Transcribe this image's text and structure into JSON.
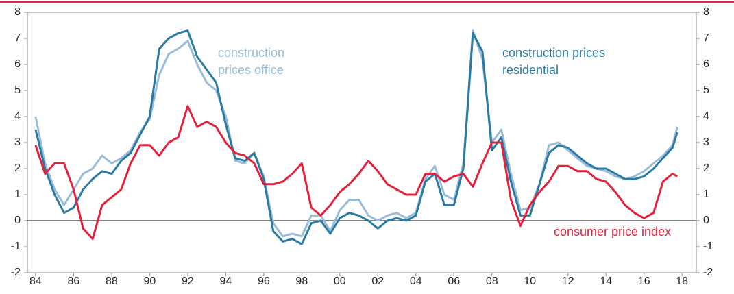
{
  "chart_data": {
    "type": "line",
    "x": [
      1984,
      1984.5,
      1985,
      1985.5,
      1986,
      1986.5,
      1987,
      1987.5,
      1988,
      1988.5,
      1989,
      1989.5,
      1990,
      1990.5,
      1991,
      1991.5,
      1992,
      1992.5,
      1993,
      1993.5,
      1994,
      1994.5,
      1995,
      1995.5,
      1996,
      1996.5,
      1997,
      1997.5,
      1998,
      1998.5,
      1999,
      1999.5,
      2000,
      2000.5,
      2001,
      2001.5,
      2002,
      2002.5,
      2003,
      2003.5,
      2004,
      2004.5,
      2005,
      2005.5,
      2006,
      2006.5,
      2007,
      2007.5,
      2008,
      2008.5,
      2009,
      2009.5,
      2010,
      2010.5,
      2011,
      2011.5,
      2012,
      2012.5,
      2013,
      2013.5,
      2014,
      2014.5,
      2015,
      2015.5,
      2016,
      2016.5,
      2017,
      2017.5,
      2017.75
    ],
    "series": [
      {
        "name": "construction prices office",
        "color": "#99bcd8",
        "values": [
          4.0,
          2.2,
          1.2,
          0.6,
          1.2,
          1.8,
          2.0,
          2.5,
          2.2,
          2.4,
          2.7,
          3.4,
          3.9,
          5.6,
          6.4,
          6.6,
          6.9,
          6.0,
          5.3,
          5.0,
          4.0,
          2.3,
          2.2,
          2.6,
          1.7,
          -0.1,
          -0.6,
          -0.5,
          -0.6,
          0.2,
          0.2,
          -0.4,
          0.4,
          0.8,
          0.8,
          0.2,
          0.0,
          0.2,
          0.3,
          0.1,
          0.3,
          1.6,
          2.1,
          1.0,
          0.8,
          2.2,
          7.3,
          6.2,
          3.0,
          3.5,
          1.8,
          0.4,
          0.5,
          1.4,
          2.9,
          3.0,
          2.7,
          2.4,
          2.1,
          2.0,
          1.9,
          1.7,
          1.6,
          1.7,
          1.9,
          2.2,
          2.5,
          2.9,
          3.6
        ]
      },
      {
        "name": "construction prices residential",
        "color": "#2a7aa3",
        "values": [
          3.5,
          2.0,
          1.0,
          0.3,
          0.5,
          1.2,
          1.6,
          1.9,
          1.8,
          2.3,
          2.6,
          3.3,
          4.0,
          6.6,
          7.0,
          7.2,
          7.3,
          6.3,
          5.8,
          5.3,
          3.7,
          2.4,
          2.3,
          2.6,
          1.6,
          -0.4,
          -0.8,
          -0.7,
          -0.9,
          -0.1,
          0.0,
          -0.5,
          0.1,
          0.3,
          0.2,
          0.0,
          -0.3,
          0.0,
          0.1,
          0.0,
          0.2,
          1.5,
          1.8,
          0.6,
          0.6,
          2.0,
          7.2,
          6.5,
          2.7,
          3.2,
          1.5,
          0.2,
          0.2,
          1.4,
          2.6,
          2.9,
          2.8,
          2.5,
          2.2,
          2.0,
          2.0,
          1.8,
          1.6,
          1.6,
          1.7,
          2.0,
          2.4,
          2.8,
          3.4
        ]
      },
      {
        "name": "consumer price index",
        "color": "#e5203a",
        "values": [
          2.9,
          1.8,
          2.2,
          2.2,
          1.2,
          -0.3,
          -0.7,
          0.6,
          0.9,
          1.2,
          2.2,
          2.9,
          2.9,
          2.5,
          3.0,
          3.2,
          4.4,
          3.6,
          3.8,
          3.6,
          3.0,
          2.6,
          2.5,
          2.2,
          1.4,
          1.4,
          1.5,
          1.8,
          2.2,
          0.5,
          0.2,
          0.6,
          1.1,
          1.4,
          1.8,
          2.3,
          1.9,
          1.4,
          1.2,
          1.0,
          1.0,
          1.8,
          1.8,
          1.5,
          1.7,
          1.8,
          1.3,
          2.2,
          3.0,
          3.0,
          0.8,
          -0.2,
          0.6,
          1.1,
          1.5,
          2.1,
          2.1,
          1.9,
          1.9,
          1.6,
          1.5,
          1.1,
          0.6,
          0.3,
          0.1,
          0.3,
          1.5,
          1.8,
          1.7
        ]
      }
    ],
    "xlim": [
      1983.57,
      2018.75
    ],
    "xticks": [
      {
        "value": 1984,
        "label": "84"
      },
      {
        "value": 1986,
        "label": "86"
      },
      {
        "value": 1988,
        "label": "88"
      },
      {
        "value": 1990,
        "label": "90"
      },
      {
        "value": 1992,
        "label": "92"
      },
      {
        "value": 1994,
        "label": "94"
      },
      {
        "value": 1996,
        "label": "96"
      },
      {
        "value": 1998,
        "label": "98"
      },
      {
        "value": 2000,
        "label": "00"
      },
      {
        "value": 2002,
        "label": "02"
      },
      {
        "value": 2004,
        "label": "04"
      },
      {
        "value": 2006,
        "label": "06"
      },
      {
        "value": 2008,
        "label": "08"
      },
      {
        "value": 2010,
        "label": "10"
      },
      {
        "value": 2012,
        "label": "12"
      },
      {
        "value": 2014,
        "label": "14"
      },
      {
        "value": 2016,
        "label": "16"
      },
      {
        "value": 2018,
        "label": "18"
      }
    ],
    "ylim": [
      -2,
      8
    ],
    "yticks": [
      -2,
      -1,
      0,
      1,
      2,
      3,
      4,
      5,
      6,
      7,
      8
    ],
    "y2lim": [
      -2,
      8
    ],
    "y2ticks": [
      -2,
      -1,
      0,
      1,
      2,
      3,
      4,
      5,
      6,
      7,
      8
    ]
  }
}
